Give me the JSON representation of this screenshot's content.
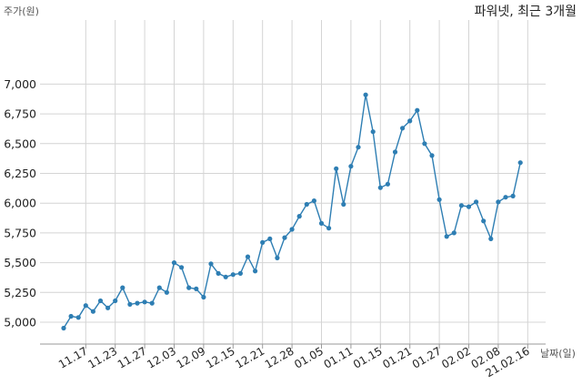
{
  "chart_data": {
    "type": "line",
    "title": "파워넷, 최근 3개월",
    "ylabel": "주가(원)",
    "xlabel": "날짜(일)",
    "ylim": [
      4800,
      7000
    ],
    "yticks": [
      5000,
      5250,
      5500,
      5750,
      6000,
      6250,
      6500,
      6750,
      7000
    ],
    "ytick_labels": [
      "5,000",
      "5,250",
      "5,500",
      "5,750",
      "6,000",
      "6,250",
      "6,500",
      "6,750",
      "7,000"
    ],
    "xticks": [
      {
        "i": 3,
        "label": "11.17"
      },
      {
        "i": 7,
        "label": "11.23"
      },
      {
        "i": 11,
        "label": "11.27"
      },
      {
        "i": 15,
        "label": "12.03"
      },
      {
        "i": 19,
        "label": "12.09"
      },
      {
        "i": 23,
        "label": "12.15"
      },
      {
        "i": 27,
        "label": "12.21"
      },
      {
        "i": 31,
        "label": "12.28"
      },
      {
        "i": 35,
        "label": "01.05"
      },
      {
        "i": 39,
        "label": "01.11"
      },
      {
        "i": 43,
        "label": "01.15"
      },
      {
        "i": 47,
        "label": "01.21"
      },
      {
        "i": 51,
        "label": "01.27"
      },
      {
        "i": 55,
        "label": "02.02"
      },
      {
        "i": 59,
        "label": "02.08"
      },
      {
        "i": 63,
        "label": "21.02.16"
      }
    ],
    "grid": true,
    "color": "#2e7eb3",
    "values": [
      4950,
      5050,
      5040,
      5140,
      5090,
      5180,
      5120,
      5180,
      5290,
      5150,
      5160,
      5170,
      5160,
      5290,
      5250,
      5500,
      5460,
      5290,
      5280,
      5210,
      5490,
      5410,
      5380,
      5400,
      5410,
      5550,
      5430,
      5670,
      5700,
      5540,
      5710,
      5780,
      5890,
      5990,
      6020,
      5830,
      5790,
      6290,
      5990,
      6310,
      6470,
      6910,
      6600,
      6130,
      6160,
      6430,
      6630,
      6690,
      6780,
      6500,
      6400,
      6030,
      5720,
      5750,
      5980,
      5970,
      6010,
      5850,
      5700,
      6010,
      6050,
      6060,
      6340
    ]
  }
}
